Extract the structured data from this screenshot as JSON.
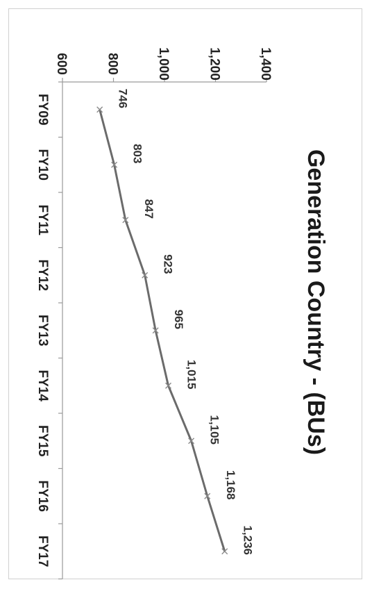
{
  "chart_data": {
    "type": "line",
    "title": "Generation Country - (BUs)",
    "categories": [
      "FY09",
      "FY10",
      "FY11",
      "FY12",
      "FY13",
      "FY14",
      "FY15",
      "FY16",
      "FY17"
    ],
    "values": [
      746,
      803,
      847,
      923,
      965,
      1015,
      1105,
      1168,
      1236
    ],
    "data_labels": [
      "746",
      "803",
      "847",
      "923",
      "965",
      "1,015",
      "1,105",
      "1,168",
      "1,236"
    ],
    "y_ticks": [
      600,
      800,
      1000,
      1200,
      1400
    ],
    "y_tick_labels": [
      "600",
      "800",
      "1,000",
      "1,200",
      "1,400"
    ],
    "ylim": [
      600,
      1400
    ],
    "colors": {
      "line": "#6b6b6b",
      "marker": "#8a8a8a",
      "axis": "#9a9a9a"
    }
  }
}
